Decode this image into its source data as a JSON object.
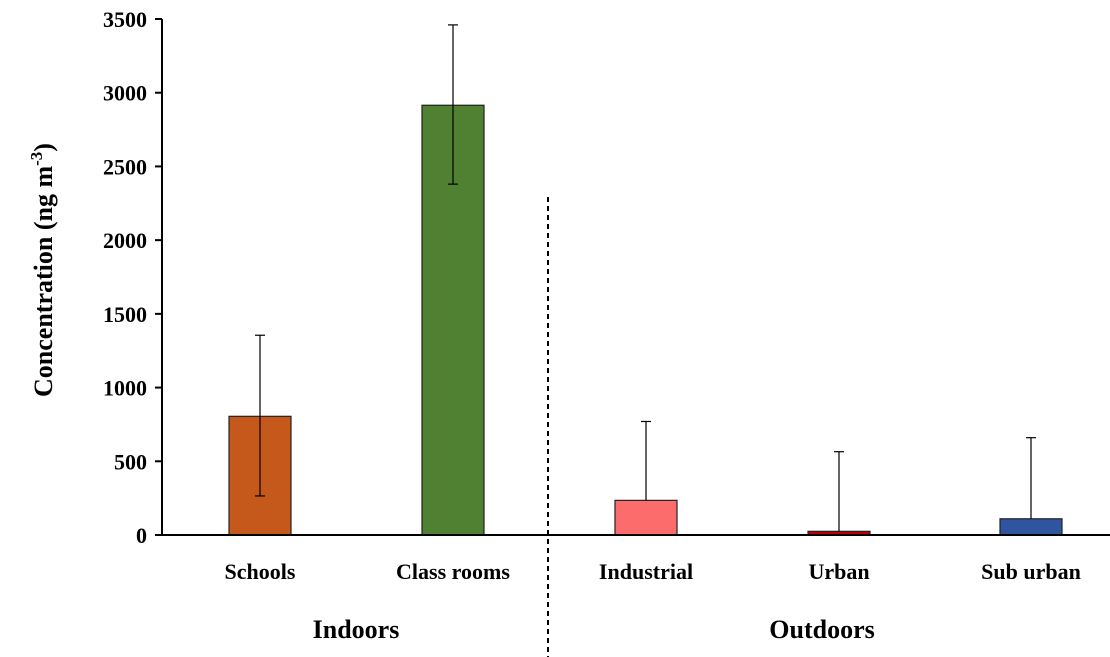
{
  "chart_data": {
    "type": "bar",
    "title": "",
    "xlabel": "",
    "ylabel": "Concentration (ng m",
    "ylabel_sup": "-3",
    "ylabel_close": ")",
    "ylim": [
      0,
      3500
    ],
    "yticks": [
      0,
      500,
      1000,
      1500,
      2000,
      2500,
      3000,
      3500
    ],
    "yticks_text": [
      "0",
      "500",
      "1000",
      "1500",
      "2000",
      "2500",
      "3000",
      "3500"
    ],
    "grid": false,
    "legend": "none",
    "categories": [
      "Schools",
      "Class rooms",
      "Industrial",
      "Urban",
      "Sub urban"
    ],
    "values": [
      805,
      2915,
      235,
      25,
      110
    ],
    "error_upper": [
      550,
      545,
      535,
      540,
      550
    ],
    "error_lower": [
      540,
      535,
      0,
      0,
      0
    ],
    "colors": [
      "#c5591b",
      "#508032",
      "#fc6c6c",
      "#c00000",
      "#2f54a0"
    ],
    "groups": [
      {
        "label": "Indoors",
        "categories": [
          "Schools",
          "Class rooms"
        ]
      },
      {
        "label": "Outdoors",
        "categories": [
          "Industrial",
          "Urban",
          "Sub urban"
        ]
      }
    ]
  }
}
